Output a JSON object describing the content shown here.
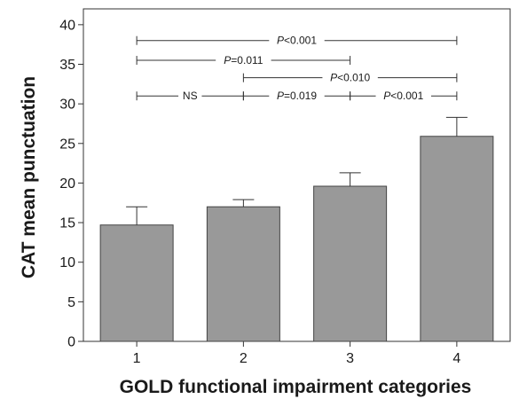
{
  "chart_data": {
    "type": "bar",
    "xlabel": "GOLD functional impairment categories",
    "ylabel": "CAT mean punctuation",
    "categories": [
      "1",
      "2",
      "3",
      "4"
    ],
    "values": [
      14.7,
      17.0,
      19.6,
      25.9
    ],
    "error_upper": [
      17.0,
      17.9,
      21.3,
      28.3
    ],
    "ylim": [
      0,
      42
    ],
    "yticks": [
      0,
      5,
      10,
      15,
      20,
      25,
      30,
      35,
      40
    ],
    "grid": false,
    "bar_color": "#999999",
    "significance": [
      {
        "from": "1",
        "to": "4",
        "y": 38,
        "p_symbol": "P",
        "rest": "<0.001"
      },
      {
        "from": "1",
        "to": "3",
        "y": 35.5,
        "p_symbol": "P",
        "rest": "=0.011"
      },
      {
        "from": "2",
        "to": "4",
        "y": 33.3,
        "p_symbol": "P",
        "rest": "<0.010"
      },
      {
        "from": "1",
        "to": "2",
        "y": 31,
        "p_symbol": "",
        "rest": "NS"
      },
      {
        "from": "2",
        "to": "3",
        "y": 31,
        "p_symbol": "P",
        "rest": "=0.019"
      },
      {
        "from": "3",
        "to": "4",
        "y": 31,
        "p_symbol": "P",
        "rest": "<0.001"
      }
    ]
  }
}
